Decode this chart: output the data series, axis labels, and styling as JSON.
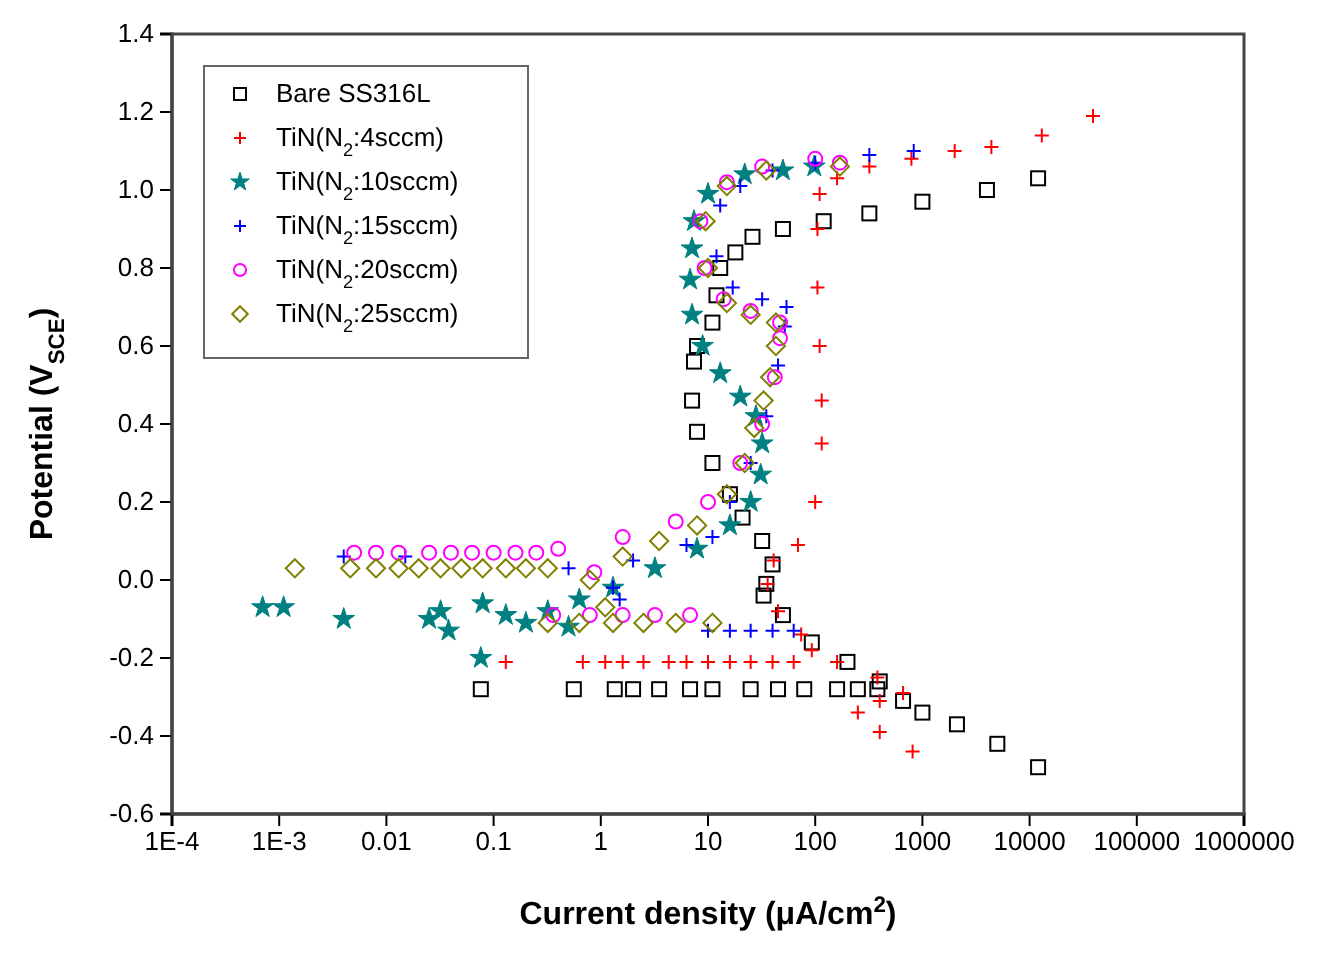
{
  "chart_data": {
    "type": "scatter",
    "xlabel": "Current density (μA/cm$^{2}$)",
    "ylabel": "Potential (V$_{SCE}$)",
    "log": "x",
    "legend": "top left",
    "grid": false,
    "xlim": [
      0.0001,
      1000000
    ],
    "xticks": [
      {
        "value": 0.0001,
        "label": "1E-4"
      },
      {
        "value": 0.001,
        "label": "1E-3"
      },
      0.01,
      0.1,
      1,
      10,
      100,
      1000,
      10000,
      100000,
      1000000
    ],
    "ylim": [
      -0.6,
      1.4
    ],
    "yticks": [
      -0.6,
      -0.4,
      -0.2,
      {
        "value": 0,
        "label": "0.0"
      },
      0.2,
      0.4,
      0.6,
      0.8,
      {
        "value": 1,
        "label": "1.0"
      },
      1.2,
      1.4
    ],
    "series": [
      {
        "name": "Bare SS316L",
        "color": "#000000",
        "marker": "square",
        "x": [
          12000,
          4000,
          1000,
          320,
          120,
          50,
          26,
          18,
          13,
          12,
          11,
          7.9,
          7.4,
          7.1,
          7.9,
          11,
          16,
          21,
          32,
          40,
          35,
          33,
          50,
          93,
          200,
          400,
          660,
          1000,
          2100,
          5000,
          12000,
          0.076,
          0.56,
          1.35,
          2.0,
          3.5,
          6.8,
          11,
          25,
          45,
          79,
          160,
          250,
          380
        ],
        "values": [
          1.03,
          1.0,
          0.97,
          0.94,
          0.92,
          0.9,
          0.88,
          0.84,
          0.8,
          0.73,
          0.66,
          0.6,
          0.56,
          0.46,
          0.38,
          0.3,
          0.22,
          0.16,
          0.1,
          0.04,
          -0.01,
          -0.04,
          -0.09,
          -0.16,
          -0.21,
          -0.26,
          -0.31,
          -0.34,
          -0.37,
          -0.42,
          -0.48,
          -0.28,
          -0.28,
          -0.28,
          -0.28,
          -0.28,
          -0.28,
          -0.28,
          -0.28,
          -0.28,
          -0.28,
          -0.28,
          -0.28,
          -0.28
        ]
      },
      {
        "name": "TiN(N$_{2}$:4sccm)",
        "color": "#ff0000",
        "marker": "cross",
        "x": [
          810,
          400,
          250,
          400,
          660,
          380,
          160,
          93,
          74,
          45,
          36,
          41,
          69,
          100,
          115,
          115,
          110,
          105,
          105,
          110,
          160,
          320,
          790,
          2000,
          4400,
          13000,
          39000,
          0.13,
          0.68,
          1.1,
          1.6,
          2.5,
          4.3,
          6.3,
          10,
          16,
          25,
          40,
          63
        ],
        "values": [
          -0.44,
          -0.39,
          -0.34,
          -0.31,
          -0.29,
          -0.25,
          -0.21,
          -0.18,
          -0.14,
          -0.08,
          -0.01,
          0.05,
          0.09,
          0.2,
          0.35,
          0.46,
          0.6,
          0.75,
          0.9,
          0.99,
          1.03,
          1.06,
          1.08,
          1.1,
          1.11,
          1.14,
          1.19,
          -0.21,
          -0.21,
          -0.21,
          -0.21,
          -0.21,
          -0.21,
          -0.21,
          -0.21,
          -0.21,
          -0.21,
          -0.21,
          -0.21
        ]
      },
      {
        "name": "TiN(N$_{2}$:10sccm)",
        "color": "#008080",
        "marker": "star",
        "x": [
          0.0007,
          0.0011,
          0.004,
          0.025,
          0.032,
          0.038,
          0.079,
          0.076,
          0.13,
          0.2,
          0.32,
          0.5,
          0.63,
          1.3,
          3.2,
          7.9,
          16,
          25,
          31,
          32,
          28,
          20,
          13,
          8.9,
          7.1,
          6.8,
          7.1,
          7.4,
          10,
          22,
          50,
          98
        ],
        "values": [
          -0.07,
          -0.07,
          -0.1,
          -0.1,
          -0.08,
          -0.13,
          -0.06,
          -0.2,
          -0.09,
          -0.11,
          -0.08,
          -0.12,
          -0.05,
          -0.02,
          0.03,
          0.08,
          0.14,
          0.2,
          0.27,
          0.35,
          0.42,
          0.47,
          0.53,
          0.6,
          0.68,
          0.77,
          0.85,
          0.92,
          0.99,
          1.04,
          1.05,
          1.06
        ]
      },
      {
        "name": "TiN(N$_{2}$:15sccm)",
        "color": "#0000ff",
        "marker": "cross",
        "x": [
          0.004,
          0.015,
          10,
          16,
          25,
          40,
          63,
          1.5,
          1.3,
          0.5,
          2.0,
          6.3,
          11,
          16,
          25,
          35,
          45,
          52,
          54,
          32,
          17,
          12,
          13,
          20,
          40,
          100,
          320,
          830
        ],
        "values": [
          0.06,
          0.06,
          -0.13,
          -0.13,
          -0.13,
          -0.13,
          -0.13,
          -0.05,
          -0.02,
          0.03,
          0.05,
          0.09,
          0.11,
          0.2,
          0.3,
          0.42,
          0.55,
          0.65,
          0.7,
          0.72,
          0.75,
          0.83,
          0.96,
          1.01,
          1.05,
          1.07,
          1.09,
          1.1
        ]
      },
      {
        "name": "TiN(N$_{2}$:20sccm)",
        "color": "#ff00ff",
        "marker": "circle",
        "x": [
          0.005,
          0.008,
          0.013,
          0.025,
          0.04,
          0.063,
          0.1,
          0.16,
          0.25,
          0.36,
          0.79,
          1.6,
          3.2,
          6.8,
          0.87,
          0.4,
          1.6,
          5,
          10,
          20,
          32,
          42,
          47,
          47,
          25,
          14,
          9.3,
          8.5,
          15,
          32,
          100,
          170
        ],
        "values": [
          0.07,
          0.07,
          0.07,
          0.07,
          0.07,
          0.07,
          0.07,
          0.07,
          0.07,
          -0.09,
          -0.09,
          -0.09,
          -0.09,
          -0.09,
          0.02,
          0.08,
          0.11,
          0.15,
          0.2,
          0.3,
          0.4,
          0.52,
          0.62,
          0.66,
          0.69,
          0.72,
          0.8,
          0.92,
          1.02,
          1.06,
          1.08,
          1.07
        ]
      },
      {
        "name": "TiN(N$_{2}$:25sccm)",
        "color": "#808000",
        "marker": "diamond",
        "x": [
          0.0014,
          0.0046,
          0.008,
          0.013,
          0.02,
          0.032,
          0.05,
          0.079,
          0.13,
          0.2,
          0.32,
          0.32,
          0.63,
          1.3,
          2.5,
          5,
          11,
          1.1,
          0.79,
          1.6,
          3.5,
          7.9,
          15,
          22,
          27,
          33,
          38,
          43,
          43,
          25,
          15,
          10,
          9.5,
          15,
          35,
          170
        ],
        "values": [
          0.03,
          0.03,
          0.03,
          0.03,
          0.03,
          0.03,
          0.03,
          0.03,
          0.03,
          0.03,
          0.03,
          -0.11,
          -0.11,
          -0.11,
          -0.11,
          -0.11,
          -0.11,
          -0.07,
          0.0,
          0.06,
          0.1,
          0.14,
          0.22,
          0.3,
          0.39,
          0.46,
          0.52,
          0.6,
          0.66,
          0.68,
          0.71,
          0.8,
          0.92,
          1.01,
          1.05,
          1.06
        ]
      }
    ]
  }
}
